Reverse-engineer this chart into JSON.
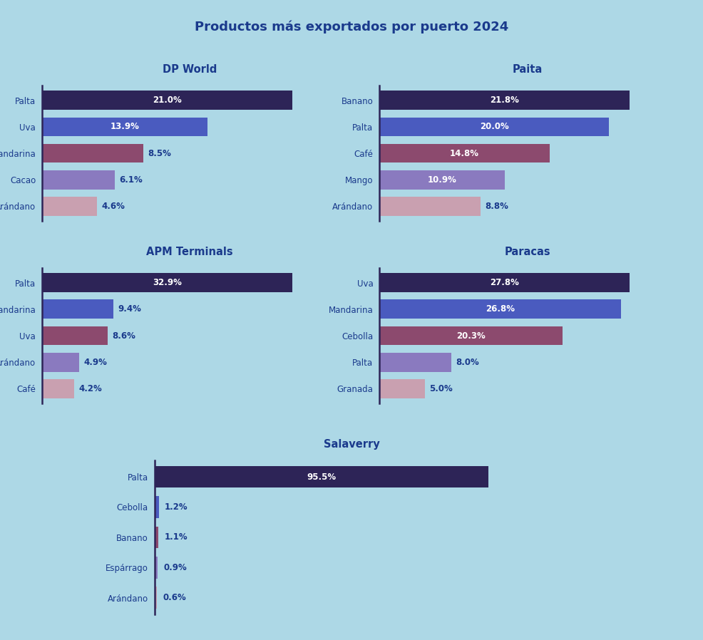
{
  "title": "Productos más exportados por puerto 2024",
  "background_color": "#add8e6",
  "title_bg": "#ffffff",
  "title_color": "#1a3a8c",
  "bar_colors": [
    "#2d2457",
    "#4a5bbf",
    "#8c4a6e",
    "#8a7abf",
    "#c9a0b0"
  ],
  "ports": [
    {
      "name": "DP World",
      "products": [
        "Palta",
        "Uva",
        "Mandarina",
        "Cacao",
        "Arándano"
      ],
      "values": [
        21.0,
        13.9,
        8.5,
        6.1,
        4.6
      ]
    },
    {
      "name": "Paita",
      "products": [
        "Banano",
        "Palta",
        "Café",
        "Mango",
        "Arándano"
      ],
      "values": [
        21.8,
        20.0,
        14.8,
        10.9,
        8.8
      ]
    },
    {
      "name": "APM Terminals",
      "products": [
        "Palta",
        "Mandarina",
        "Uva",
        "Arándano",
        "Café"
      ],
      "values": [
        32.9,
        9.4,
        8.6,
        4.9,
        4.2
      ]
    },
    {
      "name": "Paracas",
      "products": [
        "Uva",
        "Mandarina",
        "Cebolla",
        "Palta",
        "Granada"
      ],
      "values": [
        27.8,
        26.8,
        20.3,
        8.0,
        5.0
      ]
    },
    {
      "name": "Salaverry",
      "products": [
        "Palta",
        "Cebolla",
        "Banano",
        "Espárrago",
        "Arándano"
      ],
      "values": [
        95.5,
        1.2,
        1.1,
        0.9,
        0.6
      ]
    }
  ]
}
